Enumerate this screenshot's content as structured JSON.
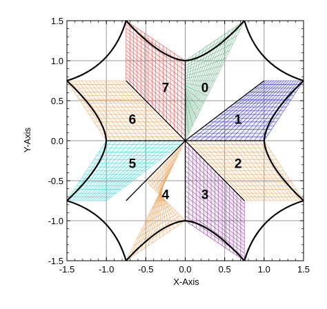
{
  "chart_data": {
    "type": "mesh",
    "xlabel": "X-Axis",
    "ylabel": "Y-Axis",
    "xlim": [
      -1.5,
      1.5
    ],
    "ylim": [
      -1.5,
      1.5
    ],
    "x_ticks": [
      -1.5,
      -1.0,
      -0.5,
      0.0,
      0.5,
      1.0,
      1.5
    ],
    "y_ticks": [
      -1.5,
      -1.0,
      -0.5,
      0.0,
      0.5,
      1.0,
      1.5
    ],
    "x_tick_labels": [
      "-1.5",
      "-1.0",
      "-0.5",
      "0.0",
      "0.5",
      "1.0",
      "1.5"
    ],
    "y_tick_labels": [
      "-1.5",
      "-1.0",
      "-0.5",
      "0.0",
      "0.5",
      "1.0",
      "1.5"
    ],
    "grid": true,
    "mesh_divisions": 16,
    "blocks": [
      {
        "label": "0",
        "color": "#5fae7c",
        "label_pos": [
          0.25,
          0.67
        ],
        "corners": [
          [
            0,
            0
          ],
          [
            0.75,
            1.5
          ],
          [
            0,
            1
          ],
          [
            0,
            0.5
          ]
        ]
      },
      {
        "label": "1",
        "color": "#2222cc",
        "label_pos": [
          0.67,
          0.27
        ],
        "corners": [
          [
            0,
            0
          ],
          [
            1,
            0
          ],
          [
            1.5,
            0.75
          ],
          [
            1,
            0.75
          ]
        ]
      },
      {
        "label": "2",
        "color": "#e8a35a",
        "label_pos": [
          0.67,
          -0.28
        ],
        "corners": [
          [
            0,
            0
          ],
          [
            0.75,
            -0.75
          ],
          [
            1.5,
            -0.75
          ],
          [
            1,
            0
          ]
        ]
      },
      {
        "label": "3",
        "color": "#8a2d9c",
        "label_pos": [
          0.25,
          -0.67
        ],
        "corners": [
          [
            0,
            0
          ],
          [
            0,
            -1
          ],
          [
            0.75,
            -1.5
          ],
          [
            0.75,
            -0.75
          ]
        ]
      },
      {
        "label": "4",
        "color": "#e8a35a",
        "label_pos": [
          -0.25,
          -0.67
        ],
        "corners": [
          [
            0,
            0
          ],
          [
            -0.75,
            -1.5
          ],
          [
            0,
            -1
          ],
          [
            -0.5,
            -0.5
          ]
        ]
      },
      {
        "label": "5",
        "color": "#2fd4d4",
        "label_pos": [
          -0.67,
          -0.28
        ],
        "corners": [
          [
            0,
            0
          ],
          [
            -1,
            0
          ],
          [
            -1.5,
            -0.75
          ],
          [
            -1,
            -0.75
          ]
        ]
      },
      {
        "label": "6",
        "color": "#e8a35a",
        "label_pos": [
          -0.67,
          0.27
        ],
        "corners": [
          [
            0,
            0
          ],
          [
            -0.75,
            0.75
          ],
          [
            -1.5,
            0.75
          ],
          [
            -1,
            0
          ]
        ]
      },
      {
        "label": "7",
        "color": "#d84646",
        "label_pos": [
          -0.25,
          0.67
        ],
        "corners": [
          [
            0,
            0
          ],
          [
            0,
            1
          ],
          [
            -0.75,
            1.5
          ],
          [
            -0.75,
            0.75
          ]
        ]
      }
    ],
    "spokes": [
      [
        [
          0,
          0
        ],
        [
          0,
          1
        ]
      ],
      [
        [
          0,
          0
        ],
        [
          1,
          0
        ]
      ],
      [
        [
          0,
          0
        ],
        [
          0,
          -1
        ]
      ],
      [
        [
          0,
          0
        ],
        [
          -1,
          0
        ]
      ],
      [
        [
          0,
          0
        ],
        [
          1,
          0.75
        ]
      ],
      [
        [
          0,
          0
        ],
        [
          0.75,
          -0.75
        ]
      ],
      [
        [
          0,
          0
        ],
        [
          -0.75,
          -0.75
        ]
      ],
      [
        [
          0,
          0
        ],
        [
          -0.75,
          0.75
        ]
      ]
    ],
    "boundary": [
      [
        0,
        1
      ],
      [
        0.75,
        1.5
      ],
      [
        0.75,
        1.5
      ],
      [
        1.5,
        0.75
      ],
      [
        1.5,
        0.75
      ],
      [
        1,
        0
      ],
      [
        1,
        0
      ],
      [
        1.5,
        -0.75
      ],
      [
        1.5,
        -0.75
      ],
      [
        0.75,
        -1.5
      ],
      [
        0.75,
        -1.5
      ],
      [
        0,
        -1
      ],
      [
        0,
        -1
      ],
      [
        -0.75,
        -1.5
      ],
      [
        -0.75,
        -1.5
      ],
      [
        -1.5,
        -0.75
      ],
      [
        -1.5,
        -0.75
      ],
      [
        -1,
        0
      ],
      [
        -1,
        0
      ],
      [
        -1.5,
        0.75
      ],
      [
        -1.5,
        0.75
      ],
      [
        -0.75,
        1.5
      ],
      [
        -0.75,
        1.5
      ],
      [
        0,
        1
      ]
    ]
  }
}
